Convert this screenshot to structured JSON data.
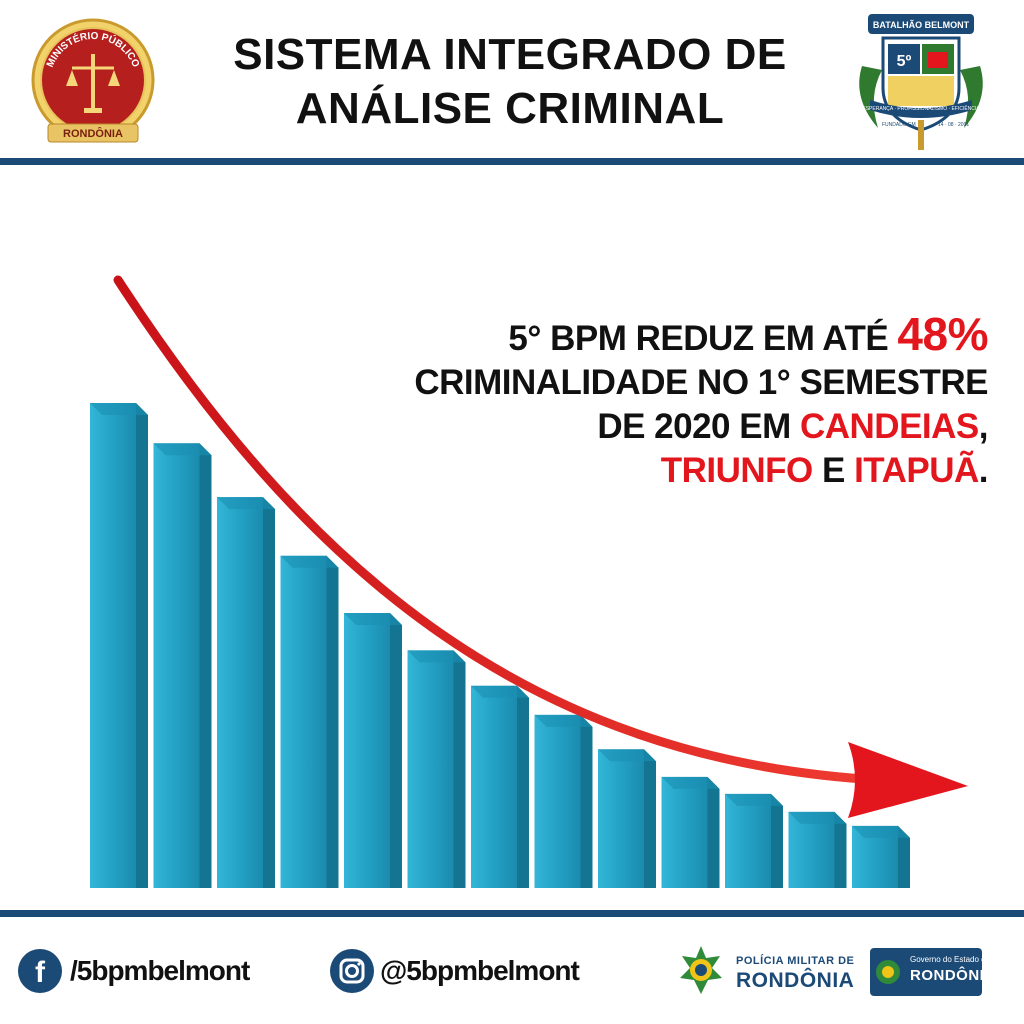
{
  "header": {
    "title_line1": "SISTEMA INTEGRADO DE",
    "title_line2": "ANÁLISE CRIMINAL",
    "left_seal": {
      "ring_text": "MINISTÉRIO PÚBLICO",
      "banner": "RONDÔNIA"
    },
    "right_seal": {
      "top_banner": "BATALHÃO BELMONT",
      "number": "5º",
      "motto": "ESPERANÇA · PROFISSIONALISMO · EFICIÊNCIA",
      "founded_label": "FUNDADO EM",
      "founded_date": "14 · 08 · 2001"
    }
  },
  "headline": {
    "l1_text": "5° BPM REDUZ EM ATÉ ",
    "l1_highlight": "48%",
    "l2_text": "CRIMINALIDADE NO 1° SEMESTRE",
    "l3_text": "DE 2020 EM ",
    "l3_highlight": "CANDEIAS",
    "l3_suffix": ",",
    "l4_highlight1": "TRIUNFO",
    "l4_mid": " E ",
    "l4_highlight2": "ITAPUÃ",
    "l4_suffix": "."
  },
  "graphic": {
    "bar_levels": [
      1.0,
      0.917,
      0.806,
      0.685,
      0.567,
      0.49,
      0.417,
      0.357,
      0.286,
      0.229,
      0.194,
      0.157,
      0.128
    ],
    "bar_color": "#22a1c4",
    "arrow_color": "#e3161d"
  },
  "footer": {
    "facebook_icon": "facebook-icon",
    "facebook_handle": "/5bpmbelmont",
    "instagram_icon": "instagram-icon",
    "instagram_handle": "@5bpmbelmont",
    "pm_small": "POLÍCIA MILITAR DE",
    "pm_large": "RONDÔNIA",
    "gov_small": "Governo do Estado de",
    "gov_large": "RONDÔNIA"
  },
  "colors": {
    "navy": "#1c4a77",
    "red": "#e3161d",
    "teal": "#22a1c4"
  }
}
